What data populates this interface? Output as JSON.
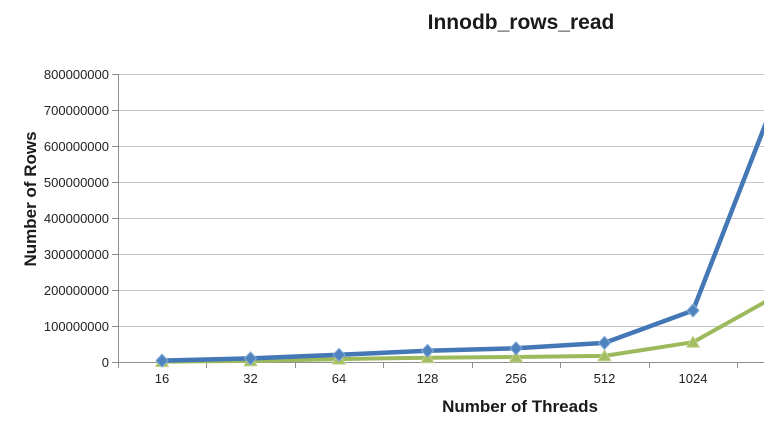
{
  "chart_data": {
    "type": "line",
    "title": "Innodb_rows_read",
    "xlabel": "Number of Threads",
    "ylabel": "Number of Rows",
    "categories": [
      "16",
      "32",
      "64",
      "128",
      "256",
      "512",
      "1024"
    ],
    "ylim": [
      0,
      800000000
    ],
    "y_ticks": [
      0,
      100000000,
      200000000,
      300000000,
      400000000,
      500000000,
      600000000,
      700000000,
      800000000
    ],
    "y_tick_labels": [
      "0",
      "100000000",
      "200000000",
      "300000000",
      "400000000",
      "500000000",
      "600000000",
      "700000000",
      "800000000"
    ],
    "grid": true,
    "legend_position": "none-visible",
    "cropped_right": true,
    "series": [
      {
        "name": "blue-series",
        "color": "#4377B6",
        "marker": "diamond",
        "marker_fill": "#4F83BE",
        "marker_stroke": "#85ABD6",
        "values": [
          4000000,
          10000000,
          20000000,
          31000000,
          38000000,
          53000000,
          143000000
        ],
        "value_at_right_crop": 650000000
      },
      {
        "name": "green-series",
        "color": "#9CBA5B",
        "marker": "triangle",
        "marker_fill": "#A2BE60",
        "marker_stroke": "#C3D494",
        "values": [
          1000000,
          3000000,
          8000000,
          12000000,
          14000000,
          17000000,
          55000000
        ],
        "value_at_right_crop": 165000000
      }
    ],
    "axis_color": "#8E8E8E",
    "grid_color": "#C5C5C5",
    "text_color": "#222222"
  }
}
